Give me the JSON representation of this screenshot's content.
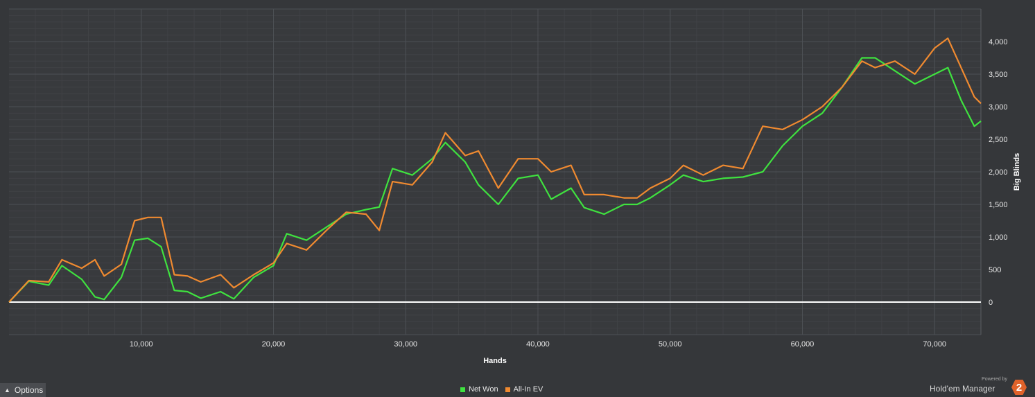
{
  "chart_data": {
    "type": "line",
    "xlabel": "Hands",
    "ylabel": "Big Blinds",
    "xlim": [
      0,
      73500
    ],
    "ylim": [
      -500,
      4500
    ],
    "x_ticks": [
      10000,
      20000,
      30000,
      40000,
      50000,
      60000,
      70000
    ],
    "x_tick_labels": [
      "10,000",
      "20,000",
      "30,000",
      "40,000",
      "50,000",
      "60,000",
      "70,000"
    ],
    "y_ticks": [
      0,
      500,
      1000,
      1500,
      2000,
      2500,
      3000,
      3500,
      4000
    ],
    "y_tick_labels": [
      "0",
      "500",
      "1,000",
      "1,500",
      "2,000",
      "2,500",
      "3,000",
      "3,500",
      "4,000"
    ],
    "grid": true,
    "legend_position": "bottom-center",
    "x": [
      0,
      1500,
      3000,
      4000,
      5500,
      6500,
      7200,
      8500,
      9500,
      10500,
      11500,
      12500,
      13500,
      14500,
      16000,
      17000,
      18500,
      20000,
      21000,
      22500,
      24000,
      25500,
      27000,
      28000,
      29000,
      30500,
      32000,
      33000,
      34500,
      35500,
      37000,
      38500,
      40000,
      41000,
      42500,
      43500,
      45000,
      46500,
      47500,
      48500,
      50000,
      51000,
      52500,
      54000,
      55500,
      57000,
      58500,
      60000,
      61500,
      63000,
      64500,
      65500,
      67000,
      68500,
      70000,
      71000,
      72000,
      73000,
      73500
    ],
    "series": [
      {
        "name": "Net Won",
        "color": "#3fe23f",
        "values": [
          0,
          320,
          260,
          560,
          350,
          80,
          40,
          380,
          950,
          980,
          850,
          180,
          160,
          60,
          160,
          50,
          380,
          560,
          1050,
          950,
          1150,
          1350,
          1420,
          1460,
          2050,
          1950,
          2200,
          2450,
          2150,
          1800,
          1500,
          1900,
          1950,
          1580,
          1750,
          1450,
          1350,
          1500,
          1500,
          1600,
          1800,
          1950,
          1850,
          1900,
          1920,
          2000,
          2400,
          2700,
          2900,
          3300,
          3750,
          3750,
          3550,
          3350,
          3500,
          3600,
          3100,
          2700,
          2780
        ]
      },
      {
        "name": "All-In EV",
        "color": "#f08a30",
        "values": [
          0,
          330,
          310,
          650,
          520,
          650,
          400,
          580,
          1250,
          1300,
          1300,
          420,
          400,
          310,
          420,
          220,
          420,
          600,
          900,
          800,
          1100,
          1380,
          1350,
          1100,
          1850,
          1800,
          2150,
          2600,
          2250,
          2320,
          1750,
          2200,
          2200,
          2000,
          2100,
          1650,
          1650,
          1600,
          1600,
          1750,
          1900,
          2100,
          1950,
          2100,
          2050,
          2700,
          2650,
          2800,
          3000,
          3300,
          3700,
          3600,
          3700,
          3500,
          3900,
          4050,
          3600,
          3150,
          3050
        ]
      }
    ]
  },
  "footer": {
    "options_label": "Options",
    "legend_net_won": "Net Won",
    "legend_all_in_ev": "All-In EV",
    "brand_powered_by": "Powered by",
    "brand_name": "Hold'em Manager",
    "brand_logo_text": "2"
  }
}
